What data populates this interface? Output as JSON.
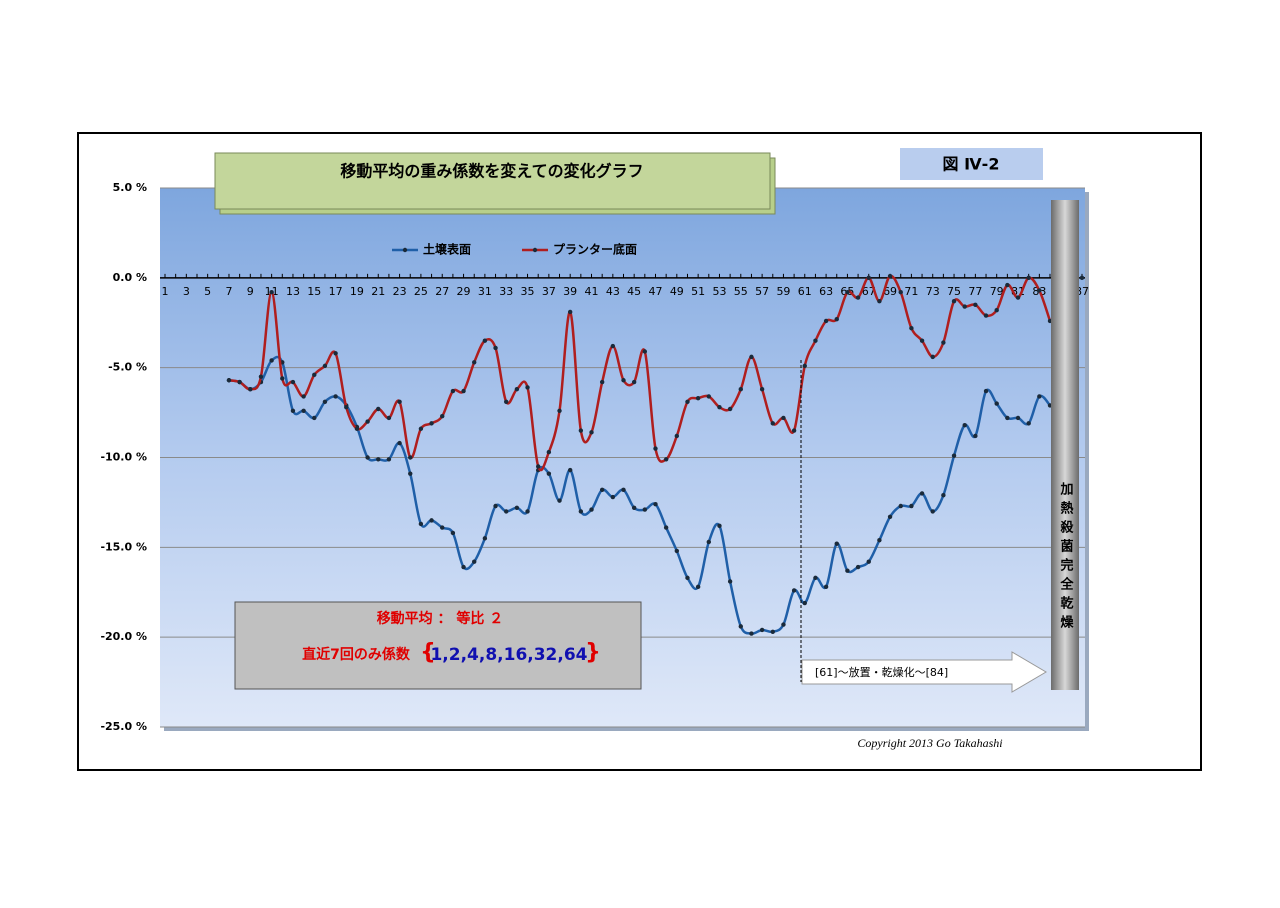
{
  "chart_data": {
    "type": "line",
    "title": "移動平均の重み係数を変えての変化グラフ",
    "figure_label": "図 Ⅳ-2",
    "categories": [
      1,
      null,
      3,
      null,
      5,
      null,
      7,
      null,
      9,
      null,
      11,
      null,
      13,
      null,
      15,
      null,
      17,
      null,
      19,
      null,
      21,
      null,
      23,
      null,
      25,
      null,
      27,
      null,
      29,
      null,
      31,
      null,
      33,
      null,
      35,
      null,
      37,
      null,
      39,
      null,
      41,
      null,
      43,
      null,
      45,
      null,
      47,
      null,
      49,
      null,
      51,
      null,
      53,
      null,
      55,
      null,
      57,
      null,
      59,
      null,
      61,
      null,
      63,
      null,
      65,
      null,
      67,
      null,
      69,
      null,
      71,
      null,
      73,
      null,
      75,
      null,
      77,
      null,
      79,
      null,
      81,
      null,
      83,
      null,
      85,
      null,
      87
    ],
    "series": [
      {
        "name": "土壌表面",
        "color": "#1f5fa8",
        "values": [
          null,
          null,
          null,
          null,
          null,
          null,
          -5.7,
          -5.8,
          -6.2,
          -5.8,
          -4.6,
          -4.7,
          -7.4,
          -7.4,
          -7.8,
          -6.9,
          -6.6,
          -7.1,
          -8.3,
          -10.0,
          -10.1,
          -10.1,
          -9.2,
          -10.9,
          -13.7,
          -13.5,
          -13.9,
          -14.2,
          -16.1,
          -15.8,
          -14.5,
          -12.7,
          -13.0,
          -12.8,
          -13.0,
          -10.7,
          -10.9,
          -12.4,
          -10.7,
          -13.0,
          -12.9,
          -11.8,
          -12.2,
          -11.8,
          -12.8,
          -12.9,
          -12.6,
          -13.9,
          -15.2,
          -16.7,
          -17.2,
          -14.7,
          -13.8,
          -16.9,
          -19.4,
          -19.8,
          -19.6,
          -19.7,
          -19.3,
          -17.4,
          -18.1,
          -16.7,
          -17.2,
          -14.8,
          -16.3,
          -16.1,
          -15.8,
          -14.6,
          -13.3,
          -12.7,
          -12.7,
          -12.0,
          -13.0,
          -12.1,
          -9.9,
          -8.2,
          -8.8,
          -6.3,
          -7.0,
          -7.8,
          -7.8,
          -8.1,
          -6.6,
          -7.1,
          null,
          null,
          null
        ]
      },
      {
        "name": "プランター底面",
        "color": "#b01e1e",
        "values": [
          null,
          null,
          null,
          null,
          null,
          null,
          -5.7,
          -5.8,
          -6.2,
          -5.5,
          -0.8,
          -5.6,
          -5.8,
          -6.6,
          -5.4,
          -4.9,
          -4.2,
          -7.2,
          -8.4,
          -8.0,
          -7.3,
          -7.8,
          -6.9,
          -10.0,
          -8.4,
          -8.1,
          -7.7,
          -6.3,
          -6.3,
          -4.7,
          -3.5,
          -3.9,
          -6.9,
          -6.2,
          -6.1,
          -10.5,
          -9.7,
          -7.4,
          -1.9,
          -8.5,
          -8.6,
          -5.8,
          -3.8,
          -5.7,
          -5.8,
          -4.1,
          -9.5,
          -10.1,
          -8.8,
          -6.9,
          -6.7,
          -6.6,
          -7.2,
          -7.3,
          -6.2,
          -4.4,
          -6.2,
          -8.1,
          -7.8,
          -8.5,
          -4.9,
          -3.5,
          -2.4,
          -2.3,
          -0.8,
          -1.1,
          0.0,
          -1.3,
          0.1,
          -0.8,
          -2.8,
          -3.5,
          -4.4,
          -3.6,
          -1.3,
          -1.6,
          -1.5,
          -2.1,
          -1.8,
          -0.4,
          -1.1,
          0.0,
          -0.7,
          -2.4,
          null,
          null,
          0.0
        ]
      }
    ],
    "ylim": [
      -25,
      5
    ],
    "yticks": [
      {
        "value": -25,
        "label": "-25.0 %"
      },
      {
        "value": -20,
        "label": "-20.0 %"
      },
      {
        "value": -15,
        "label": "-15.0 %"
      },
      {
        "value": -10,
        "label": "-10.0 %"
      },
      {
        "value": -5,
        "label": "-5.0 %"
      },
      {
        "value": 0,
        "label": "0.0 %"
      },
      {
        "value": 5,
        "label": "5.0 %"
      }
    ],
    "grid": true,
    "info_box": {
      "line1": "移動平均 ： 等比 ２",
      "line2": "直近7回のみ係数",
      "open_brace": "{",
      "coefficients": "1,2,4,8,16,32,64",
      "close_brace": "}"
    },
    "arrow_label": "[61]～放置・乾燥化～[84]",
    "bar_label": "加熱殺菌完全乾燥",
    "copyright": "Copyright 2013 Go Takahashi"
  }
}
